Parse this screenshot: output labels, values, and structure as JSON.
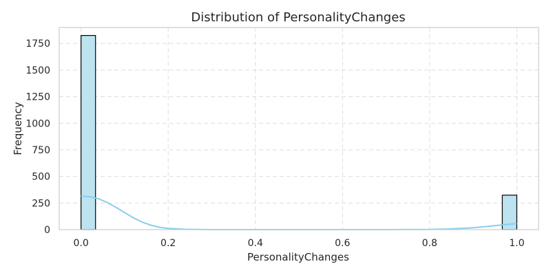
{
  "chart_data": {
    "type": "bar",
    "title": "Distribution of PersonalityChanges",
    "xlabel": "PersonalityChanges",
    "ylabel": "Frequency",
    "xlim": [
      -0.05,
      1.05
    ],
    "ylim": [
      0,
      1900
    ],
    "xticks": [
      0.0,
      0.2,
      0.4,
      0.6,
      0.8,
      1.0
    ],
    "xtick_labels": [
      "0.0",
      "0.2",
      "0.4",
      "0.6",
      "0.8",
      "1.0"
    ],
    "yticks": [
      0,
      250,
      500,
      750,
      1000,
      1250,
      1500,
      1750
    ],
    "ytick_labels": [
      "0",
      "250",
      "500",
      "750",
      "1000",
      "1250",
      "1500",
      "1750"
    ],
    "grid": true,
    "bins": [
      {
        "x0": 0.0,
        "x1": 0.0333,
        "count": 1825
      },
      {
        "x0": 0.9667,
        "x1": 1.0,
        "count": 324
      }
    ],
    "kde": {
      "x": [
        0.0,
        0.02,
        0.04,
        0.06,
        0.08,
        0.1,
        0.12,
        0.14,
        0.16,
        0.18,
        0.2,
        0.24,
        0.3,
        0.4,
        0.5,
        0.6,
        0.7,
        0.76,
        0.8,
        0.84,
        0.88,
        0.9,
        0.92,
        0.94,
        0.96,
        0.98,
        1.0
      ],
      "y": [
        315,
        310,
        290,
        255,
        210,
        160,
        112,
        72,
        42,
        22,
        11,
        3,
        0,
        0,
        0,
        0,
        0,
        1,
        2,
        6,
        13,
        18,
        25,
        33,
        42,
        50,
        56
      ]
    },
    "colors": {
      "bar_fill": "#bde3f0",
      "kde_line": "#87ceeb"
    }
  }
}
